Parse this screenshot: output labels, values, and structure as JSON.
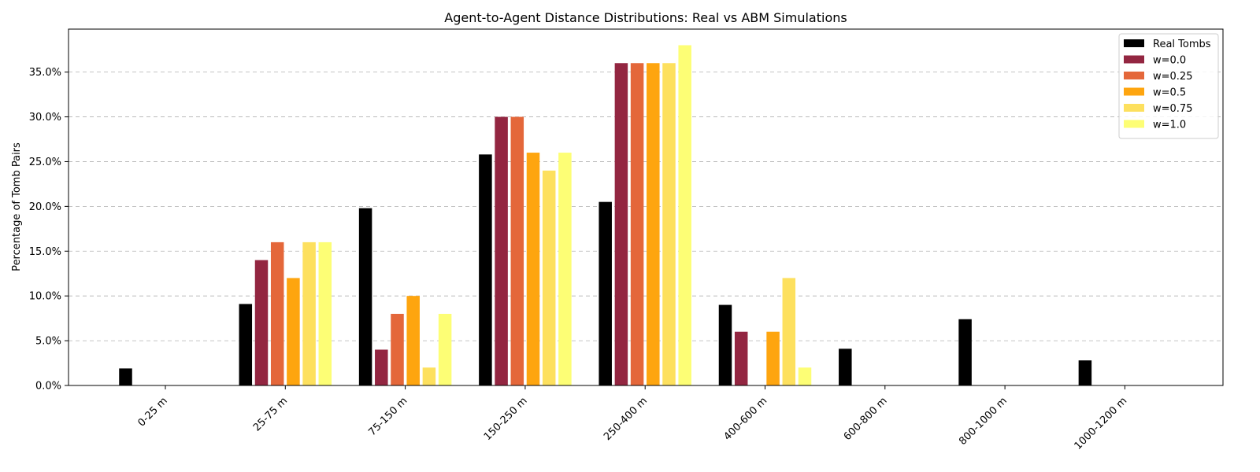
{
  "chart_data": {
    "type": "bar",
    "title": "Agent-to-Agent Distance Distributions: Real vs ABM Simulations",
    "xlabel": "",
    "ylabel": "Percentage of Tomb Pairs",
    "categories": [
      "0-25 m",
      "25-75 m",
      "75-150 m",
      "150-250 m",
      "250-400 m",
      "400-600 m",
      "600-800 m",
      "800-1000 m",
      "1000-1200 m"
    ],
    "ylim": [
      0,
      39.8
    ],
    "yticks": [
      0,
      5,
      10,
      15,
      20,
      25,
      30,
      35
    ],
    "ytick_labels": [
      "0.0%",
      "5.0%",
      "10.0%",
      "15.0%",
      "20.0%",
      "25.0%",
      "30.0%",
      "35.0%"
    ],
    "grid": "horizontal-dashed",
    "legend_position": "top-right",
    "series": [
      {
        "name": "Real Tombs",
        "color": "#000000",
        "values": [
          1.9,
          9.1,
          19.8,
          25.8,
          20.5,
          9.0,
          4.1,
          7.4,
          2.8
        ]
      },
      {
        "name": "w=0.0",
        "color": "#932641",
        "values": [
          0,
          14,
          4,
          30,
          36,
          6,
          0,
          0,
          0
        ]
      },
      {
        "name": "w=0.25",
        "color": "#e4673a",
        "values": [
          0,
          16,
          8,
          30,
          36,
          0,
          0,
          0,
          0
        ]
      },
      {
        "name": "w=0.5",
        "color": "#fea50f",
        "values": [
          0,
          12,
          10,
          26,
          36,
          6,
          0,
          0,
          0
        ]
      },
      {
        "name": "w=0.75",
        "color": "#fde05e",
        "values": [
          0,
          16,
          2,
          24,
          36,
          12,
          0,
          0,
          0
        ]
      },
      {
        "name": "w=1.0",
        "color": "#fdfe75",
        "values": [
          0,
          16,
          8,
          26,
          38,
          2,
          0,
          0,
          0
        ]
      }
    ]
  }
}
